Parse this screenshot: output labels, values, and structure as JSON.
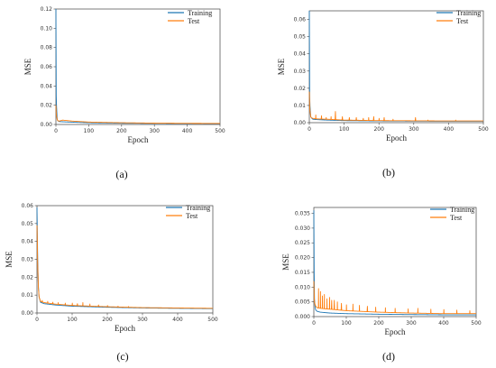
{
  "chart_data": [
    {
      "type": "line",
      "caption": "(a)",
      "xlabel": "Epoch",
      "ylabel": "MSE",
      "xlim": [
        0,
        500
      ],
      "ylim": [
        0,
        0.12
      ],
      "xticks": [
        0,
        100,
        200,
        300,
        400,
        500
      ],
      "yticks": [
        0.0,
        0.02,
        0.04,
        0.06,
        0.08,
        0.1,
        0.12
      ],
      "ytick_labels": [
        "0.00",
        "0.02",
        "0.04",
        "0.06",
        "0.08",
        "0.10",
        "0.12"
      ],
      "legend": "top-right",
      "grid": false,
      "series": [
        {
          "name": "Training",
          "color": "#1f77b4",
          "x": [
            0,
            1,
            3,
            5,
            10,
            20,
            50,
            100,
            200,
            300,
            400,
            500
          ],
          "y": [
            0.12,
            0.03,
            0.006,
            0.004,
            0.003,
            0.0028,
            0.0024,
            0.0018,
            0.0013,
            0.0011,
            0.001,
            0.0009
          ]
        },
        {
          "name": "Test",
          "color": "#ff7f0e",
          "x": [
            0,
            1,
            3,
            5,
            10,
            20,
            30,
            50,
            100,
            200,
            300,
            400,
            500
          ],
          "y": [
            0.02,
            0.012,
            0.006,
            0.004,
            0.0035,
            0.0045,
            0.0042,
            0.0035,
            0.0025,
            0.0018,
            0.0014,
            0.0012,
            0.0011
          ]
        }
      ]
    },
    {
      "type": "line",
      "caption": "(b)",
      "xlabel": "Epoch",
      "ylabel": "MSE",
      "xlim": [
        0,
        500
      ],
      "ylim": [
        0,
        0.065
      ],
      "xticks": [
        0,
        100,
        200,
        300,
        400,
        500
      ],
      "yticks": [
        0.0,
        0.01,
        0.02,
        0.03,
        0.04,
        0.05,
        0.06
      ],
      "ytick_labels": [
        "0.00",
        "0.01",
        "0.02",
        "0.03",
        "0.04",
        "0.05",
        "0.06"
      ],
      "legend": "top-right",
      "grid": false,
      "series": [
        {
          "name": "Training",
          "color": "#1f77b4",
          "x": [
            0,
            1,
            3,
            5,
            10,
            20,
            50,
            100,
            200,
            300,
            400,
            500
          ],
          "y": [
            0.065,
            0.015,
            0.004,
            0.003,
            0.002,
            0.0018,
            0.0015,
            0.0012,
            0.001,
            0.0009,
            0.0008,
            0.0008
          ],
          "spikes": []
        },
        {
          "name": "Test",
          "color": "#ff7f0e",
          "x": [
            0,
            1,
            3,
            5,
            10,
            20,
            50,
            100,
            200,
            300,
            400,
            500
          ],
          "y": [
            0.018,
            0.01,
            0.004,
            0.003,
            0.0025,
            0.0022,
            0.002,
            0.0015,
            0.0012,
            0.0011,
            0.001,
            0.001
          ],
          "spikes": [
            [
              18,
              0.0045
            ],
            [
              35,
              0.004
            ],
            [
              48,
              0.003
            ],
            [
              62,
              0.0035
            ],
            [
              75,
              0.0065
            ],
            [
              95,
              0.0035
            ],
            [
              115,
              0.003
            ],
            [
              135,
              0.003
            ],
            [
              155,
              0.0025
            ],
            [
              170,
              0.003
            ],
            [
              185,
              0.0035
            ],
            [
              200,
              0.0025
            ],
            [
              215,
              0.003
            ],
            [
              240,
              0.002
            ],
            [
              305,
              0.003
            ],
            [
              340,
              0.0015
            ],
            [
              420,
              0.0015
            ]
          ]
        }
      ]
    },
    {
      "type": "line",
      "caption": "(c)",
      "xlabel": "Epoch",
      "ylabel": "MSE",
      "xlim": [
        0,
        500
      ],
      "ylim": [
        0,
        0.06
      ],
      "xticks": [
        0,
        100,
        200,
        300,
        400,
        500
      ],
      "yticks": [
        0.0,
        0.01,
        0.02,
        0.03,
        0.04,
        0.05,
        0.06
      ],
      "ytick_labels": [
        "0.00",
        "0.01",
        "0.02",
        "0.03",
        "0.04",
        "0.05",
        "0.06"
      ],
      "legend": "top-right",
      "grid": false,
      "series": [
        {
          "name": "Training",
          "color": "#1f77b4",
          "x": [
            0,
            1,
            2,
            4,
            6,
            10,
            20,
            50,
            100,
            200,
            300,
            400,
            500
          ],
          "y": [
            0.059,
            0.045,
            0.03,
            0.015,
            0.009,
            0.006,
            0.0052,
            0.0045,
            0.0038,
            0.0032,
            0.0028,
            0.0026,
            0.0024
          ],
          "spikes": []
        },
        {
          "name": "Test",
          "color": "#ff7f0e",
          "x": [
            0,
            1,
            2,
            4,
            6,
            10,
            20,
            50,
            100,
            200,
            300,
            400,
            500
          ],
          "y": [
            0.049,
            0.04,
            0.028,
            0.014,
            0.009,
            0.0065,
            0.0058,
            0.005,
            0.0042,
            0.0035,
            0.003,
            0.0028,
            0.0026
          ],
          "spikes": [
            [
              15,
              0.007
            ],
            [
              30,
              0.0065
            ],
            [
              45,
              0.006
            ],
            [
              60,
              0.0058
            ],
            [
              80,
              0.0055
            ],
            [
              100,
              0.0055
            ],
            [
              115,
              0.0052
            ],
            [
              130,
              0.0058
            ],
            [
              150,
              0.005
            ],
            [
              175,
              0.0045
            ],
            [
              200,
              0.0042
            ],
            [
              230,
              0.0038
            ],
            [
              260,
              0.0036
            ]
          ]
        }
      ]
    },
    {
      "type": "line",
      "caption": "(d)",
      "xlabel": "Epoch",
      "ylabel": "MSE",
      "xlim": [
        0,
        500
      ],
      "ylim": [
        0,
        0.037
      ],
      "xticks": [
        0,
        100,
        200,
        300,
        400,
        500
      ],
      "yticks": [
        0.0,
        0.005,
        0.01,
        0.015,
        0.02,
        0.025,
        0.03,
        0.035
      ],
      "ytick_labels": [
        "0.000",
        "0.005",
        "0.010",
        "0.015",
        "0.020",
        "0.025",
        "0.030",
        "0.035"
      ],
      "legend": "top-right",
      "grid": false,
      "series": [
        {
          "name": "Training",
          "color": "#1f77b4",
          "x": [
            0,
            1,
            2,
            4,
            6,
            10,
            20,
            50,
            100,
            200,
            300,
            400,
            500
          ],
          "y": [
            0.036,
            0.015,
            0.006,
            0.003,
            0.0022,
            0.0018,
            0.0015,
            0.0012,
            0.001,
            0.0008,
            0.0007,
            0.0006,
            0.0006
          ],
          "spikes": []
        },
        {
          "name": "Test",
          "color": "#ff7f0e",
          "x": [
            0,
            1,
            2,
            4,
            6,
            10,
            20,
            50,
            100,
            200,
            300,
            400,
            500
          ],
          "y": [
            0.012,
            0.008,
            0.005,
            0.004,
            0.0035,
            0.003,
            0.0028,
            0.0025,
            0.002,
            0.0015,
            0.0012,
            0.001,
            0.001
          ],
          "spikes": [
            [
              14,
              0.0095
            ],
            [
              20,
              0.0085
            ],
            [
              26,
              0.007
            ],
            [
              32,
              0.0075
            ],
            [
              40,
              0.006
            ],
            [
              48,
              0.0065
            ],
            [
              55,
              0.0055
            ],
            [
              63,
              0.0055
            ],
            [
              72,
              0.005
            ],
            [
              85,
              0.0045
            ],
            [
              100,
              0.004
            ],
            [
              120,
              0.0042
            ],
            [
              140,
              0.0038
            ],
            [
              165,
              0.0035
            ],
            [
              190,
              0.0032
            ],
            [
              220,
              0.003
            ],
            [
              250,
              0.0028
            ],
            [
              290,
              0.0026
            ],
            [
              320,
              0.0028
            ],
            [
              360,
              0.0025
            ],
            [
              400,
              0.0024
            ],
            [
              440,
              0.0022
            ],
            [
              480,
              0.002
            ]
          ]
        }
      ]
    }
  ]
}
